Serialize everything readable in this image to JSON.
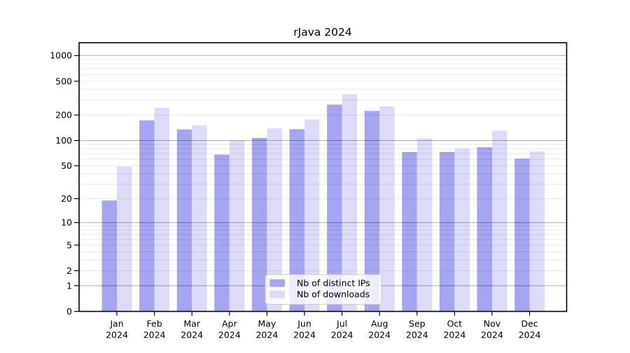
{
  "chart_data": {
    "type": "bar",
    "title": "rJava 2024",
    "x_year": "2024",
    "categories": [
      "Jan",
      "Feb",
      "Mar",
      "Apr",
      "May",
      "Jun",
      "Jul",
      "Aug",
      "Sep",
      "Oct",
      "Nov",
      "Dec"
    ],
    "series": [
      {
        "name": "Nb of distinct IPs",
        "color": "#a5a5f2",
        "values": [
          19,
          173,
          135,
          68,
          107,
          136,
          265,
          223,
          73,
          73,
          83,
          61
        ]
      },
      {
        "name": "Nb of downloads",
        "color": "#dcdcf8",
        "values": [
          49,
          243,
          151,
          100,
          139,
          177,
          350,
          252,
          106,
          80,
          130,
          74
        ]
      }
    ],
    "y_axis": {
      "scale": "log1p",
      "tick_values": [
        0,
        1,
        2,
        5,
        10,
        20,
        50,
        100,
        200,
        500,
        1000
      ],
      "major_grid_values": [
        1,
        10,
        100,
        1000
      ],
      "range": [
        0,
        1414
      ]
    },
    "x_axis": {
      "tick_label_line1": [
        "Jan",
        "Feb",
        "Mar",
        "Apr",
        "May",
        "Jun",
        "Jul",
        "Aug",
        "Sep",
        "Oct",
        "Nov",
        "Dec"
      ],
      "tick_label_line2": "2024"
    },
    "legend": {
      "position": "lower-center-inside",
      "background": "#ffffff",
      "border_color": "#cccccc"
    },
    "grid": {
      "shown": true,
      "drawn_over_bars": true,
      "major_color": "#b3b3b3",
      "minor_color": "#e9e9e9"
    },
    "background": "#ffffff",
    "frame_color": "#000000"
  }
}
